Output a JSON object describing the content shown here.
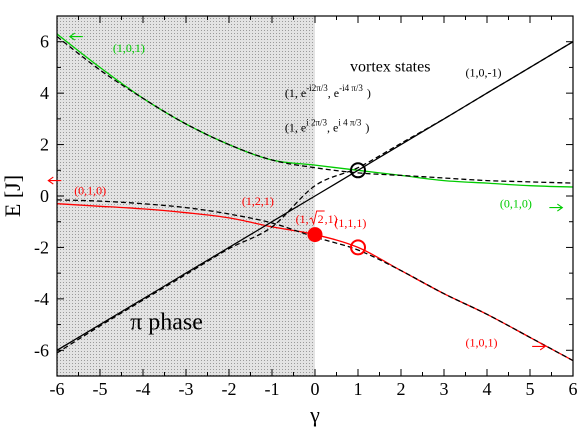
{
  "chart_data": {
    "type": "line",
    "title": "",
    "xlabel": "γ",
    "ylabel": "E [J]",
    "xlim": [
      -6,
      6
    ],
    "ylim": [
      -7,
      7
    ],
    "xticks": [
      -6,
      -5,
      -4,
      -3,
      -2,
      -1,
      0,
      1,
      2,
      3,
      4,
      5,
      6
    ],
    "yticks": [
      -6,
      -4,
      -2,
      0,
      2,
      4,
      6
    ],
    "x": [
      -6,
      -5,
      -4,
      -3,
      -2,
      -1,
      0,
      1,
      2,
      3,
      4,
      5,
      6
    ],
    "series": [
      {
        "color": "#00cc00",
        "style": "solid",
        "values": [
          6.3,
          5.0,
          3.8,
          2.8,
          2.0,
          1.4,
          1.2,
          1.0,
          0.8,
          0.6,
          0.5,
          0.4,
          0.35
        ]
      },
      {
        "color": "#000000",
        "style": "dashed",
        "values": [
          6.2,
          4.9,
          3.8,
          2.8,
          2.0,
          1.4,
          1.1,
          0.9,
          0.8,
          0.7,
          0.6,
          0.55,
          0.5
        ]
      },
      {
        "color": "#ff0000",
        "style": "solid",
        "values": [
          -0.3,
          -0.4,
          -0.5,
          -0.65,
          -0.85,
          -1.2,
          -1.5,
          -2.0,
          -2.9,
          -3.8,
          -4.6,
          -5.5,
          -6.4
        ]
      },
      {
        "color": "#000000",
        "style": "dashed",
        "values": [
          -0.15,
          -0.2,
          -0.3,
          -0.45,
          -0.7,
          -1.05,
          -1.6,
          -2.1,
          -2.9,
          -3.8,
          -4.6,
          -5.5,
          -6.4
        ]
      },
      {
        "color": "#000000",
        "style": "solid",
        "values": [
          -6,
          -5,
          -4,
          -3,
          -2,
          -1,
          0,
          1,
          2,
          3,
          4,
          5,
          6
        ]
      },
      {
        "color": "#000000",
        "style": "dashed",
        "values": [
          -6.1,
          -5.05,
          -4.05,
          -3.05,
          -2.05,
          -1.2,
          0.4,
          1.1,
          2.05,
          3.0,
          4.0,
          5.0,
          6.0
        ]
      }
    ],
    "markers": [
      {
        "x": 0,
        "y": -1.5,
        "color": "#ff0000",
        "filled": true
      },
      {
        "x": 1,
        "y": -2.0,
        "color": "#ff0000",
        "filled": false
      },
      {
        "x": 1,
        "y": 1.0,
        "color": "#000000",
        "filled": false
      }
    ],
    "shaded_region": {
      "x_from": -6,
      "x_to": 0,
      "color": "#d9d9d9"
    },
    "annotations": [
      {
        "text": "(1,0,1)",
        "color": "#00cc00",
        "x": -4.7,
        "y": 5.6
      },
      {
        "text": "(0,1,0)",
        "color": "#00cc00",
        "x": 4.3,
        "y": -0.45
      },
      {
        "text": "(0,1,0)",
        "color": "#ff0000",
        "x": -5.6,
        "y": 0.05
      },
      {
        "text": "(1,2,1)",
        "color": "#ff0000",
        "x": -1.7,
        "y": -0.35
      },
      {
        "text": "(1,1,1)",
        "color": "#ff0000",
        "x": 0.45,
        "y": -1.2
      },
      {
        "text": "(1,0,1)",
        "color": "#ff0000",
        "x": 3.5,
        "y": -5.85
      },
      {
        "text": "(1,0,-1)",
        "color": "#000000",
        "x": 3.5,
        "y": 4.65
      }
    ],
    "arrows": [
      {
        "color": "#00cc00",
        "x": -5.4,
        "y": 6.2,
        "direction": "left"
      },
      {
        "color": "#00cc00",
        "x": 5.45,
        "y": -0.45,
        "direction": "right"
      },
      {
        "color": "#ff0000",
        "x": -5.9,
        "y": 0.6,
        "direction": "left"
      },
      {
        "color": "#ff0000",
        "x": 5.05,
        "y": -5.85,
        "direction": "right"
      }
    ],
    "root_two_label": {
      "prefix": "(1,",
      "radical": "2",
      "suffix": " ,1)",
      "color": "#ff0000",
      "x": -0.45,
      "y": -1.05
    },
    "vortex": {
      "title": "vortex states",
      "state1": {
        "lead": "(1, e",
        "exp1": "-i2π/3",
        "mid": ", e",
        "exp2": "-i4 π/3",
        "tail": ")"
      },
      "state2": {
        "lead": "(1, e",
        "exp1": "i 2π/3",
        "mid": ", e",
        "exp2": "i 4 π/3",
        "tail": ")"
      }
    },
    "phase_label": {
      "symbol": "π",
      "word": " phase"
    }
  }
}
